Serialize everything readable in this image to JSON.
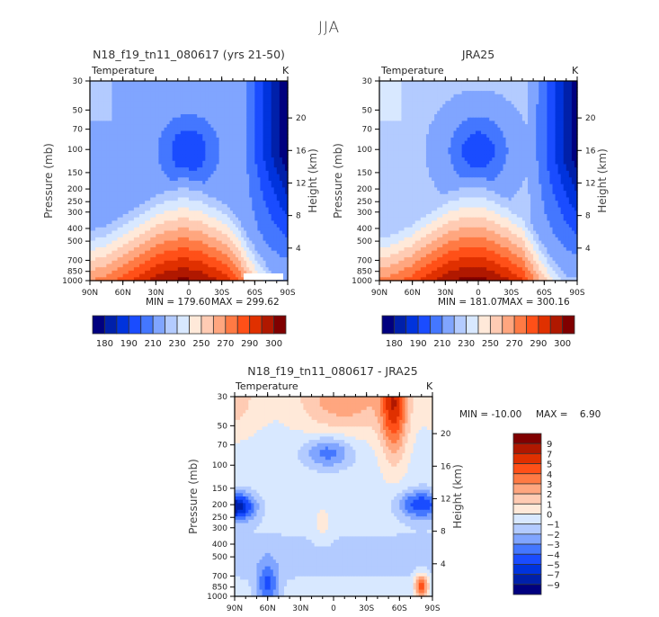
{
  "page_title": "JJA",
  "chart_data": [
    {
      "type": "heatmap",
      "title": "N18_f19_tn11_080617 (yrs 21-50)",
      "variable": "Temperature",
      "units": "K",
      "xlabel": "",
      "ylabel": "Pressure (mb)",
      "y2label": "Height (km)",
      "x_ticks": [
        "90N",
        "60N",
        "30N",
        "0",
        "30S",
        "60S",
        "90S"
      ],
      "y_ticks": [
        "30",
        "50",
        "70",
        "100",
        "150",
        "200",
        "250",
        "300",
        "400",
        "500",
        "700",
        "850",
        "1000"
      ],
      "y2_ticks": [
        "4",
        "8",
        "12",
        "16",
        "20"
      ],
      "min_label": "MIN = 179.60",
      "max_label": "MAX = 299.62",
      "min": 179.6,
      "max": 299.62,
      "colorbar_labels": [
        "180",
        "190",
        "210",
        "230",
        "250",
        "270",
        "290",
        "300"
      ],
      "colorbar_orientation": "horizontal",
      "description": "Zonal-mean temperature cross-section; warm (red) near surface tropics, cold (blue) minimum near 100 mb over equator and coldest at high southern latitudes aloft"
    },
    {
      "type": "heatmap",
      "title": "JRA25",
      "variable": "Temperature",
      "units": "K",
      "xlabel": "",
      "ylabel": "Pressure (mb)",
      "y2label": "Height (km)",
      "x_ticks": [
        "90N",
        "60N",
        "30N",
        "0",
        "30S",
        "60S",
        "90S"
      ],
      "y_ticks": [
        "30",
        "50",
        "70",
        "100",
        "150",
        "200",
        "250",
        "300",
        "400",
        "500",
        "700",
        "850",
        "1000"
      ],
      "y2_ticks": [
        "4",
        "8",
        "12",
        "16",
        "20"
      ],
      "min_label": "MIN = 181.07",
      "max_label": "MAX = 300.16",
      "min": 181.07,
      "max": 300.16,
      "colorbar_labels": [
        "180",
        "190",
        "210",
        "230",
        "250",
        "270",
        "290",
        "300"
      ],
      "colorbar_orientation": "horizontal"
    },
    {
      "type": "heatmap",
      "title": "N18_f19_tn11_080617 - JRA25",
      "variable": "Temperature",
      "units": "K",
      "xlabel": "",
      "ylabel": "Pressure (mb)",
      "y2label": "Height (km)",
      "x_ticks": [
        "90N",
        "60N",
        "30N",
        "0",
        "30S",
        "60S",
        "90S"
      ],
      "y_ticks": [
        "30",
        "50",
        "70",
        "100",
        "150",
        "200",
        "250",
        "300",
        "400",
        "500",
        "700",
        "850",
        "1000"
      ],
      "y2_ticks": [
        "4",
        "8",
        "12",
        "16",
        "20"
      ],
      "min_label": "MIN = -10.00",
      "max_label": "MAX =    6.90",
      "min": -10.0,
      "max": 6.9,
      "colorbar_labels": [
        "9",
        "7",
        "5",
        "4",
        "3",
        "2",
        "1",
        "0",
        "−1",
        "−2",
        "−3",
        "−4",
        "−5",
        "−7",
        "−9"
      ],
      "colorbar_orientation": "vertical"
    }
  ],
  "palette": [
    "#00007f",
    "#0020aa",
    "#0033dd",
    "#1a4cff",
    "#4477ff",
    "#80a5ff",
    "#b3cbff",
    "#d8e8ff",
    "#ffe9d9",
    "#ffcbb3",
    "#ffa67f",
    "#ff7a44",
    "#ff5018",
    "#e03000",
    "#b01800",
    "#800000"
  ]
}
